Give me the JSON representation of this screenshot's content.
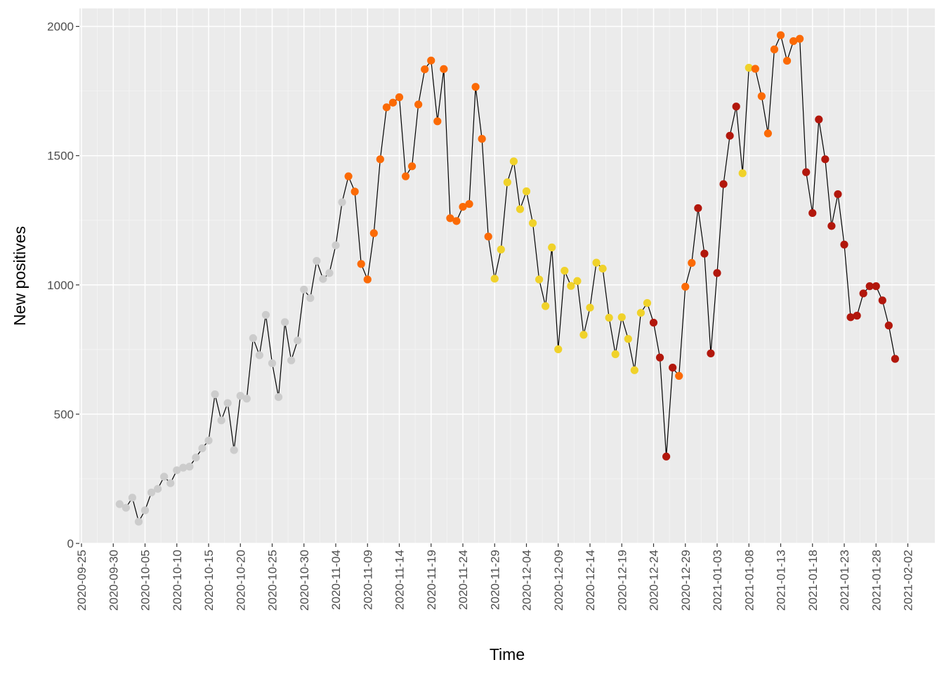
{
  "chart_data": {
    "type": "scatter",
    "xlabel": "Time",
    "ylabel": "New positives",
    "ylim": [
      0,
      2050
    ],
    "xlim": [
      "2020-09-25",
      "2021-02-04"
    ],
    "y_ticks": [
      "0",
      "500",
      "1000",
      "1500",
      "2000"
    ],
    "x_ticks": [
      "2020-09-25",
      "2020-09-30",
      "2020-10-05",
      "2020-10-10",
      "2020-10-15",
      "2020-10-20",
      "2020-10-25",
      "2020-10-30",
      "2020-11-04",
      "2020-11-09",
      "2020-11-14",
      "2020-11-19",
      "2020-11-24",
      "2020-11-29",
      "2020-12-04",
      "2020-12-09",
      "2020-12-14",
      "2020-12-19",
      "2020-12-24",
      "2020-12-29",
      "2021-01-03",
      "2021-01-08",
      "2021-01-13",
      "2021-01-18",
      "2021-01-23",
      "2021-01-28",
      "2021-02-02"
    ],
    "grid": true,
    "background": "#ebebeb",
    "line_color": "#000000",
    "zone_colors": {
      "white": "#cccccc",
      "yellow": "#f0d22a",
      "orange": "#fb6a05",
      "red": "#b2170c"
    },
    "series": [
      {
        "points": [
          {
            "x": "2020-10-01",
            "y": 152,
            "zone": "white"
          },
          {
            "x": "2020-10-02",
            "y": 138,
            "zone": "white"
          },
          {
            "x": "2020-10-03",
            "y": 177,
            "zone": "white"
          },
          {
            "x": "2020-10-04",
            "y": 84,
            "zone": "white"
          },
          {
            "x": "2020-10-05",
            "y": 128,
            "zone": "white"
          },
          {
            "x": "2020-10-06",
            "y": 197,
            "zone": "white"
          },
          {
            "x": "2020-10-07",
            "y": 211,
            "zone": "white"
          },
          {
            "x": "2020-10-08",
            "y": 258,
            "zone": "white"
          },
          {
            "x": "2020-10-09",
            "y": 233,
            "zone": "white"
          },
          {
            "x": "2020-10-10",
            "y": 283,
            "zone": "white"
          },
          {
            "x": "2020-10-11",
            "y": 293,
            "zone": "white"
          },
          {
            "x": "2020-10-12",
            "y": 297,
            "zone": "white"
          },
          {
            "x": "2020-10-13",
            "y": 332,
            "zone": "white"
          },
          {
            "x": "2020-10-14",
            "y": 368,
            "zone": "white"
          },
          {
            "x": "2020-10-15",
            "y": 398,
            "zone": "white"
          },
          {
            "x": "2020-10-16",
            "y": 577,
            "zone": "white"
          },
          {
            "x": "2020-10-17",
            "y": 476,
            "zone": "white"
          },
          {
            "x": "2020-10-18",
            "y": 543,
            "zone": "white"
          },
          {
            "x": "2020-10-19",
            "y": 361,
            "zone": "white"
          },
          {
            "x": "2020-10-20",
            "y": 571,
            "zone": "white"
          },
          {
            "x": "2020-10-21",
            "y": 560,
            "zone": "white"
          },
          {
            "x": "2020-10-22",
            "y": 794,
            "zone": "white"
          },
          {
            "x": "2020-10-23",
            "y": 728,
            "zone": "white"
          },
          {
            "x": "2020-10-24",
            "y": 884,
            "zone": "white"
          },
          {
            "x": "2020-10-25",
            "y": 697,
            "zone": "white"
          },
          {
            "x": "2020-10-26",
            "y": 566,
            "zone": "white"
          },
          {
            "x": "2020-10-27",
            "y": 856,
            "zone": "white"
          },
          {
            "x": "2020-10-28",
            "y": 708,
            "zone": "white"
          },
          {
            "x": "2020-10-29",
            "y": 785,
            "zone": "white"
          },
          {
            "x": "2020-10-30",
            "y": 982,
            "zone": "white"
          },
          {
            "x": "2020-10-31",
            "y": 949,
            "zone": "white"
          },
          {
            "x": "2020-11-01",
            "y": 1093,
            "zone": "white"
          },
          {
            "x": "2020-11-02",
            "y": 1023,
            "zone": "white"
          },
          {
            "x": "2020-11-03",
            "y": 1046,
            "zone": "white"
          },
          {
            "x": "2020-11-04",
            "y": 1153,
            "zone": "white"
          },
          {
            "x": "2020-11-05",
            "y": 1320,
            "zone": "white"
          },
          {
            "x": "2020-11-06",
            "y": 1420,
            "zone": "orange"
          },
          {
            "x": "2020-11-07",
            "y": 1361,
            "zone": "orange"
          },
          {
            "x": "2020-11-08",
            "y": 1081,
            "zone": "orange"
          },
          {
            "x": "2020-11-09",
            "y": 1021,
            "zone": "orange"
          },
          {
            "x": "2020-11-10",
            "y": 1200,
            "zone": "orange"
          },
          {
            "x": "2020-11-11",
            "y": 1486,
            "zone": "orange"
          },
          {
            "x": "2020-11-12",
            "y": 1687,
            "zone": "orange"
          },
          {
            "x": "2020-11-13",
            "y": 1705,
            "zone": "orange"
          },
          {
            "x": "2020-11-14",
            "y": 1726,
            "zone": "orange"
          },
          {
            "x": "2020-11-15",
            "y": 1420,
            "zone": "orange"
          },
          {
            "x": "2020-11-16",
            "y": 1459,
            "zone": "orange"
          },
          {
            "x": "2020-11-17",
            "y": 1698,
            "zone": "orange"
          },
          {
            "x": "2020-11-18",
            "y": 1834,
            "zone": "orange"
          },
          {
            "x": "2020-11-19",
            "y": 1868,
            "zone": "orange"
          },
          {
            "x": "2020-11-20",
            "y": 1633,
            "zone": "orange"
          },
          {
            "x": "2020-11-21",
            "y": 1835,
            "zone": "orange"
          },
          {
            "x": "2020-11-22",
            "y": 1258,
            "zone": "orange"
          },
          {
            "x": "2020-11-23",
            "y": 1247,
            "zone": "orange"
          },
          {
            "x": "2020-11-24",
            "y": 1302,
            "zone": "orange"
          },
          {
            "x": "2020-11-25",
            "y": 1313,
            "zone": "orange"
          },
          {
            "x": "2020-11-26",
            "y": 1766,
            "zone": "orange"
          },
          {
            "x": "2020-11-27",
            "y": 1565,
            "zone": "orange"
          },
          {
            "x": "2020-11-28",
            "y": 1187,
            "zone": "orange"
          },
          {
            "x": "2020-11-29",
            "y": 1024,
            "zone": "yellow"
          },
          {
            "x": "2020-11-30",
            "y": 1137,
            "zone": "yellow"
          },
          {
            "x": "2020-12-01",
            "y": 1397,
            "zone": "yellow"
          },
          {
            "x": "2020-12-02",
            "y": 1478,
            "zone": "yellow"
          },
          {
            "x": "2020-12-03",
            "y": 1293,
            "zone": "yellow"
          },
          {
            "x": "2020-12-04",
            "y": 1362,
            "zone": "yellow"
          },
          {
            "x": "2020-12-05",
            "y": 1239,
            "zone": "yellow"
          },
          {
            "x": "2020-12-06",
            "y": 1021,
            "zone": "yellow"
          },
          {
            "x": "2020-12-07",
            "y": 918,
            "zone": "yellow"
          },
          {
            "x": "2020-12-08",
            "y": 1145,
            "zone": "yellow"
          },
          {
            "x": "2020-12-09",
            "y": 751,
            "zone": "yellow"
          },
          {
            "x": "2020-12-10",
            "y": 1055,
            "zone": "yellow"
          },
          {
            "x": "2020-12-11",
            "y": 996,
            "zone": "yellow"
          },
          {
            "x": "2020-12-12",
            "y": 1015,
            "zone": "yellow"
          },
          {
            "x": "2020-12-13",
            "y": 807,
            "zone": "yellow"
          },
          {
            "x": "2020-12-14",
            "y": 912,
            "zone": "yellow"
          },
          {
            "x": "2020-12-15",
            "y": 1086,
            "zone": "yellow"
          },
          {
            "x": "2020-12-16",
            "y": 1063,
            "zone": "yellow"
          },
          {
            "x": "2020-12-17",
            "y": 873,
            "zone": "yellow"
          },
          {
            "x": "2020-12-18",
            "y": 732,
            "zone": "yellow"
          },
          {
            "x": "2020-12-19",
            "y": 875,
            "zone": "yellow"
          },
          {
            "x": "2020-12-20",
            "y": 791,
            "zone": "yellow"
          },
          {
            "x": "2020-12-21",
            "y": 670,
            "zone": "yellow"
          },
          {
            "x": "2020-12-22",
            "y": 892,
            "zone": "yellow"
          },
          {
            "x": "2020-12-23",
            "y": 930,
            "zone": "yellow"
          },
          {
            "x": "2020-12-24",
            "y": 854,
            "zone": "red"
          },
          {
            "x": "2020-12-25",
            "y": 719,
            "zone": "red"
          },
          {
            "x": "2020-12-26",
            "y": 336,
            "zone": "red"
          },
          {
            "x": "2020-12-27",
            "y": 680,
            "zone": "red"
          },
          {
            "x": "2020-12-28",
            "y": 648,
            "zone": "orange"
          },
          {
            "x": "2020-12-29",
            "y": 993,
            "zone": "orange"
          },
          {
            "x": "2020-12-30",
            "y": 1085,
            "zone": "orange"
          },
          {
            "x": "2020-12-31",
            "y": 1297,
            "zone": "red"
          },
          {
            "x": "2021-01-01",
            "y": 1121,
            "zone": "red"
          },
          {
            "x": "2021-01-02",
            "y": 735,
            "zone": "red"
          },
          {
            "x": "2021-01-03",
            "y": 1046,
            "zone": "red"
          },
          {
            "x": "2021-01-04",
            "y": 1390,
            "zone": "red"
          },
          {
            "x": "2021-01-05",
            "y": 1577,
            "zone": "red"
          },
          {
            "x": "2021-01-06",
            "y": 1690,
            "zone": "red"
          },
          {
            "x": "2021-01-07",
            "y": 1432,
            "zone": "yellow"
          },
          {
            "x": "2021-01-08",
            "y": 1840,
            "zone": "yellow"
          },
          {
            "x": "2021-01-09",
            "y": 1836,
            "zone": "orange"
          },
          {
            "x": "2021-01-10",
            "y": 1730,
            "zone": "orange"
          },
          {
            "x": "2021-01-11",
            "y": 1586,
            "zone": "orange"
          },
          {
            "x": "2021-01-12",
            "y": 1911,
            "zone": "orange"
          },
          {
            "x": "2021-01-13",
            "y": 1966,
            "zone": "orange"
          },
          {
            "x": "2021-01-14",
            "y": 1867,
            "zone": "orange"
          },
          {
            "x": "2021-01-15",
            "y": 1943,
            "zone": "orange"
          },
          {
            "x": "2021-01-16",
            "y": 1952,
            "zone": "orange"
          },
          {
            "x": "2021-01-17",
            "y": 1436,
            "zone": "red"
          },
          {
            "x": "2021-01-18",
            "y": 1278,
            "zone": "red"
          },
          {
            "x": "2021-01-19",
            "y": 1640,
            "zone": "red"
          },
          {
            "x": "2021-01-20",
            "y": 1486,
            "zone": "red"
          },
          {
            "x": "2021-01-21",
            "y": 1228,
            "zone": "red"
          },
          {
            "x": "2021-01-22",
            "y": 1351,
            "zone": "red"
          },
          {
            "x": "2021-01-23",
            "y": 1156,
            "zone": "red"
          },
          {
            "x": "2021-01-24",
            "y": 875,
            "zone": "red"
          },
          {
            "x": "2021-01-25",
            "y": 881,
            "zone": "red"
          },
          {
            "x": "2021-01-26",
            "y": 967,
            "zone": "red"
          },
          {
            "x": "2021-01-27",
            "y": 995,
            "zone": "red"
          },
          {
            "x": "2021-01-28",
            "y": 995,
            "zone": "red"
          },
          {
            "x": "2021-01-29",
            "y": 940,
            "zone": "red"
          },
          {
            "x": "2021-01-30",
            "y": 843,
            "zone": "red"
          },
          {
            "x": "2021-01-31",
            "y": 714,
            "zone": "red"
          }
        ]
      }
    ]
  }
}
